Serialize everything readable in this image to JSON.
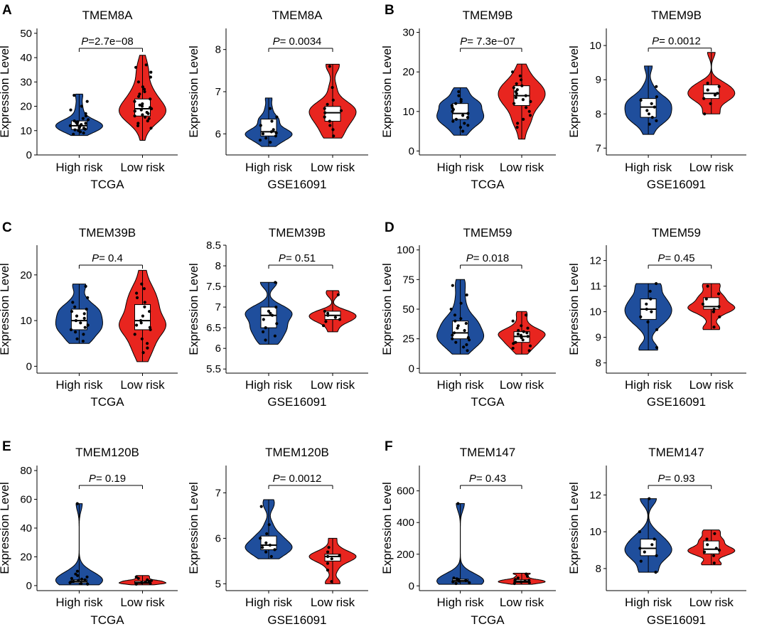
{
  "colors": {
    "high_risk": "#1f4e9c",
    "low_risk": "#e8251f",
    "box_fill": "#ffffff",
    "outline": "#000000"
  },
  "chart_data": [
    {
      "type": "violin",
      "panel_letter": "A",
      "title": "TMEM8A",
      "xlabel": "TCGA",
      "ylabel": "Expression Level",
      "categories": [
        "High risk",
        "Low risk"
      ],
      "p_prefix": "P",
      "p_text": "=2.7e−08",
      "ylim": [
        0,
        52
      ],
      "yticks": [
        0,
        10,
        20,
        30,
        40,
        50
      ],
      "groups": [
        {
          "name": "High risk",
          "min": 8,
          "q1": 10.5,
          "median": 12,
          "q3": 14,
          "max": 25,
          "points": [
            8.5,
            9,
            9.5,
            10,
            10.3,
            10.6,
            11,
            11.2,
            11.5,
            11.8,
            12,
            12.2,
            12.5,
            12.8,
            13,
            13.3,
            13.6,
            14,
            14.5,
            15,
            16,
            17,
            18.5,
            20,
            22,
            24.5
          ]
        },
        {
          "name": "Low risk",
          "min": 6,
          "q1": 16,
          "median": 19,
          "q3": 23,
          "max": 41,
          "points": [
            11,
            12,
            13,
            14,
            15,
            15.5,
            16,
            16.5,
            17,
            17.5,
            18,
            18.5,
            19,
            19.5,
            20,
            20.5,
            21,
            22,
            23,
            24,
            25,
            26,
            27,
            28,
            30,
            32,
            34,
            36,
            37
          ]
        }
      ]
    },
    {
      "type": "violin",
      "panel_letter": "",
      "title": "TMEM8A",
      "xlabel": "GSE16091",
      "ylabel": "Expression Level",
      "categories": [
        "High risk",
        "Low risk"
      ],
      "p_prefix": "P",
      "p_text": "= 0.0034",
      "ylim": [
        5.5,
        8.5
      ],
      "yticks": [
        6,
        7,
        8
      ],
      "groups": [
        {
          "name": "High risk",
          "min": 5.7,
          "q1": 5.95,
          "median": 6.05,
          "q3": 6.35,
          "max": 6.85,
          "points": [
            5.8,
            5.85,
            5.9,
            5.95,
            6,
            6.02,
            6.05,
            6.1,
            6.2,
            6.3,
            6.4,
            6.6
          ]
        },
        {
          "name": "Low risk",
          "min": 5.9,
          "q1": 6.3,
          "median": 6.5,
          "q3": 6.65,
          "max": 7.65,
          "points": [
            5.95,
            6.1,
            6.2,
            6.3,
            6.4,
            6.5,
            6.55,
            6.6,
            6.7,
            6.8,
            7.1,
            7.6
          ]
        }
      ]
    },
    {
      "type": "violin",
      "panel_letter": "B",
      "title": "TMEM9B",
      "xlabel": "TCGA",
      "ylabel": "Expression Level",
      "categories": [
        "High risk",
        "Low risk"
      ],
      "p_prefix": "P",
      "p_text": "= 7.3e−07",
      "ylim": [
        -1,
        31
      ],
      "yticks": [
        0,
        10,
        20,
        30
      ],
      "groups": [
        {
          "name": "High risk",
          "min": 4,
          "q1": 8,
          "median": 9.5,
          "q3": 12,
          "max": 16,
          "points": [
            5,
            6,
            6.5,
            7,
            7.5,
            8,
            8.5,
            9,
            9.5,
            10,
            10.5,
            11,
            11.5,
            12,
            12.5,
            13,
            14,
            15
          ]
        },
        {
          "name": "Low risk",
          "min": 3,
          "q1": 11.5,
          "median": 14,
          "q3": 16.5,
          "max": 22,
          "points": [
            6,
            7,
            8,
            9,
            10,
            11,
            12,
            12.5,
            13,
            13.5,
            14,
            14.5,
            15,
            15.5,
            16,
            16.5,
            17,
            18,
            19,
            20
          ]
        }
      ]
    },
    {
      "type": "violin",
      "panel_letter": "",
      "title": "TMEM9B",
      "xlabel": "GSE16091",
      "ylabel": "Expression Level",
      "categories": [
        "High risk",
        "Low risk"
      ],
      "p_prefix": "P",
      "p_text": "= 0.0012",
      "ylim": [
        6.8,
        10.5
      ],
      "yticks": [
        7,
        8,
        9,
        10
      ],
      "groups": [
        {
          "name": "High risk",
          "min": 7.4,
          "q1": 7.9,
          "median": 8.2,
          "q3": 8.45,
          "max": 9.4,
          "points": [
            7.7,
            7.8,
            7.9,
            8,
            8.1,
            8.2,
            8.3,
            8.4,
            8.5,
            8.8
          ]
        },
        {
          "name": "Low risk",
          "min": 8,
          "q1": 8.45,
          "median": 8.6,
          "q3": 8.85,
          "max": 9.8,
          "points": [
            8,
            8.3,
            8.45,
            8.55,
            8.6,
            8.7,
            8.8,
            8.9
          ]
        }
      ]
    },
    {
      "type": "violin",
      "panel_letter": "C",
      "title": "TMEM39B",
      "xlabel": "TCGA",
      "ylabel": "Expression Level",
      "categories": [
        "High risk",
        "Low risk"
      ],
      "p_prefix": "P",
      "p_text": "= 0.4",
      "ylim": [
        -1.5,
        26.5
      ],
      "yticks": [
        0,
        10,
        20
      ],
      "groups": [
        {
          "name": "High risk",
          "min": 5,
          "q1": 8,
          "median": 10,
          "q3": 12.5,
          "max": 18,
          "points": [
            5.5,
            6,
            7,
            7.5,
            8,
            8.5,
            9,
            9.5,
            10,
            10.5,
            11,
            11.5,
            12,
            12.5,
            13,
            14,
            15,
            17.5
          ]
        },
        {
          "name": "Low risk",
          "min": 1,
          "q1": 8,
          "median": 10,
          "q3": 13.5,
          "max": 21,
          "points": [
            3,
            4,
            5,
            6,
            7,
            8,
            8.5,
            9,
            9.5,
            10,
            11,
            12,
            13,
            14,
            15,
            16,
            17,
            18
          ]
        }
      ]
    },
    {
      "type": "violin",
      "panel_letter": "",
      "title": "TMEM39B",
      "xlabel": "GSE16091",
      "ylabel": "Expression Level",
      "categories": [
        "High risk",
        "Low risk"
      ],
      "p_prefix": "P",
      "p_text": "= 0.51",
      "ylim": [
        5.4,
        8.5
      ],
      "yticks": [
        5.5,
        6.0,
        6.5,
        7.0,
        7.5,
        8.0,
        8.5
      ],
      "groups": [
        {
          "name": "High risk",
          "min": 6.1,
          "q1": 6.5,
          "median": 6.8,
          "q3": 7.0,
          "max": 7.6,
          "points": [
            6.2,
            6.3,
            6.4,
            6.5,
            6.6,
            6.7,
            6.8,
            6.85,
            6.9,
            7,
            7.6
          ]
        },
        {
          "name": "Low risk",
          "min": 6.4,
          "q1": 6.7,
          "median": 6.8,
          "q3": 6.9,
          "max": 7.4,
          "points": [
            6.55,
            6.65,
            6.7,
            6.75,
            6.8,
            6.85,
            6.9,
            7.3
          ]
        }
      ]
    },
    {
      "type": "violin",
      "panel_letter": "D",
      "title": "TMEM59",
      "xlabel": "TCGA",
      "ylabel": "Expression Level",
      "categories": [
        "High risk",
        "Low risk"
      ],
      "p_prefix": "P",
      "p_text": "= 0.018",
      "ylim": [
        -4,
        104
      ],
      "yticks": [
        0,
        25,
        50,
        75,
        100
      ],
      "groups": [
        {
          "name": "High risk",
          "min": 12,
          "q1": 25,
          "median": 30,
          "q3": 40,
          "max": 75,
          "points": [
            15,
            18,
            20,
            22,
            24,
            25,
            26,
            28,
            30,
            32,
            34,
            36,
            38,
            40,
            42,
            45,
            50,
            55,
            62,
            70
          ]
        },
        {
          "name": "Low risk",
          "min": 12,
          "q1": 22,
          "median": 27,
          "q3": 31,
          "max": 48,
          "points": [
            15,
            17,
            19,
            21,
            22,
            24,
            26,
            27,
            28,
            29,
            30,
            31,
            32,
            34,
            36,
            40,
            45
          ]
        }
      ]
    },
    {
      "type": "violin",
      "panel_letter": "",
      "title": "TMEM59",
      "xlabel": "GSE16091",
      "ylabel": "Expression Level",
      "categories": [
        "High risk",
        "Low risk"
      ],
      "p_prefix": "P",
      "p_text": "= 0.45",
      "ylim": [
        7.6,
        12.6
      ],
      "yticks": [
        8,
        9,
        10,
        11,
        12
      ],
      "groups": [
        {
          "name": "High risk",
          "min": 8.5,
          "q1": 9.7,
          "median": 10.1,
          "q3": 10.5,
          "max": 11.1,
          "points": [
            8.6,
            9.3,
            9.6,
            9.8,
            10,
            10.1,
            10.3,
            10.5,
            10.8,
            11.1
          ]
        },
        {
          "name": "Low risk",
          "min": 9.3,
          "q1": 10.1,
          "median": 10.2,
          "q3": 10.55,
          "max": 11.1,
          "points": [
            9.4,
            9.8,
            10,
            10.1,
            10.2,
            10.3,
            10.5,
            10.7,
            11
          ]
        }
      ]
    },
    {
      "type": "violin",
      "panel_letter": "E",
      "title": "TMEM120B",
      "xlabel": "TCGA",
      "ylabel": "Expression Level",
      "categories": [
        "High risk",
        "Low risk"
      ],
      "p_prefix": "P",
      "p_text": "= 0.19",
      "ylim": [
        -3.5,
        83.5
      ],
      "yticks": [
        0,
        20,
        40,
        60,
        80
      ],
      "groups": [
        {
          "name": "High risk",
          "min": 0.5,
          "q1": 2,
          "median": 3,
          "q3": 4,
          "max": 57,
          "points": [
            1,
            1.5,
            2,
            2.5,
            3,
            3.5,
            4,
            4.5,
            5,
            6,
            7,
            8,
            10,
            57
          ]
        },
        {
          "name": "Low risk",
          "min": 0.5,
          "q1": 1.5,
          "median": 2,
          "q3": 3,
          "max": 7,
          "points": [
            1,
            1.5,
            2,
            2.5,
            3,
            3.5,
            4,
            5,
            6
          ]
        }
      ]
    },
    {
      "type": "violin",
      "panel_letter": "",
      "title": "TMEM120B",
      "xlabel": "GSE16091",
      "ylabel": "Expression Level",
      "categories": [
        "High risk",
        "Low risk"
      ],
      "p_prefix": "P",
      "p_text": "= 0.0012",
      "ylim": [
        4.85,
        7.6
      ],
      "yticks": [
        5,
        6,
        7
      ],
      "groups": [
        {
          "name": "High risk",
          "min": 5.55,
          "q1": 5.75,
          "median": 5.85,
          "q3": 6.05,
          "max": 6.85,
          "points": [
            5.6,
            5.7,
            5.75,
            5.8,
            5.85,
            5.9,
            6,
            6.1,
            6.3,
            6.7
          ]
        },
        {
          "name": "Low risk",
          "min": 5.0,
          "q1": 5.5,
          "median": 5.6,
          "q3": 5.65,
          "max": 6.0,
          "points": [
            5.05,
            5.3,
            5.45,
            5.55,
            5.6,
            5.62,
            5.7,
            5.8
          ]
        }
      ]
    },
    {
      "type": "violin",
      "panel_letter": "F",
      "title": "TMEM147",
      "xlabel": "TCGA",
      "ylabel": "Expression Level",
      "categories": [
        "High risk",
        "Low risk"
      ],
      "p_prefix": "P",
      "p_text": "= 0.43",
      "ylim": [
        -30,
        760
      ],
      "yticks": [
        0,
        200,
        400,
        600
      ],
      "groups": [
        {
          "name": "High risk",
          "min": 10,
          "q1": 25,
          "median": 32,
          "q3": 42,
          "max": 520,
          "points": [
            15,
            20,
            25,
            30,
            35,
            40,
            45,
            50,
            520
          ]
        },
        {
          "name": "Low risk",
          "min": 10,
          "q1": 22,
          "median": 28,
          "q3": 38,
          "max": 80,
          "points": [
            15,
            20,
            25,
            30,
            35,
            40,
            50,
            60,
            75
          ]
        }
      ]
    },
    {
      "type": "violin",
      "panel_letter": "",
      "title": "TMEM147",
      "xlabel": "GSE16091",
      "ylabel": "Expression Level",
      "categories": [
        "High risk",
        "Low risk"
      ],
      "p_prefix": "P",
      "p_text": "= 0.93",
      "ylim": [
        6.8,
        13.6
      ],
      "yticks": [
        8,
        10,
        12
      ],
      "groups": [
        {
          "name": "High risk",
          "min": 7.8,
          "q1": 8.7,
          "median": 9.1,
          "q3": 9.6,
          "max": 11.8,
          "points": [
            7.8,
            8.4,
            8.7,
            8.9,
            9.1,
            9.3,
            9.6,
            10,
            11.8
          ]
        },
        {
          "name": "Low risk",
          "min": 8.2,
          "q1": 8.8,
          "median": 9.05,
          "q3": 9.5,
          "max": 10.1,
          "points": [
            8.3,
            8.7,
            8.9,
            9,
            9.1,
            9.3,
            9.6,
            9.9
          ]
        }
      ]
    }
  ]
}
